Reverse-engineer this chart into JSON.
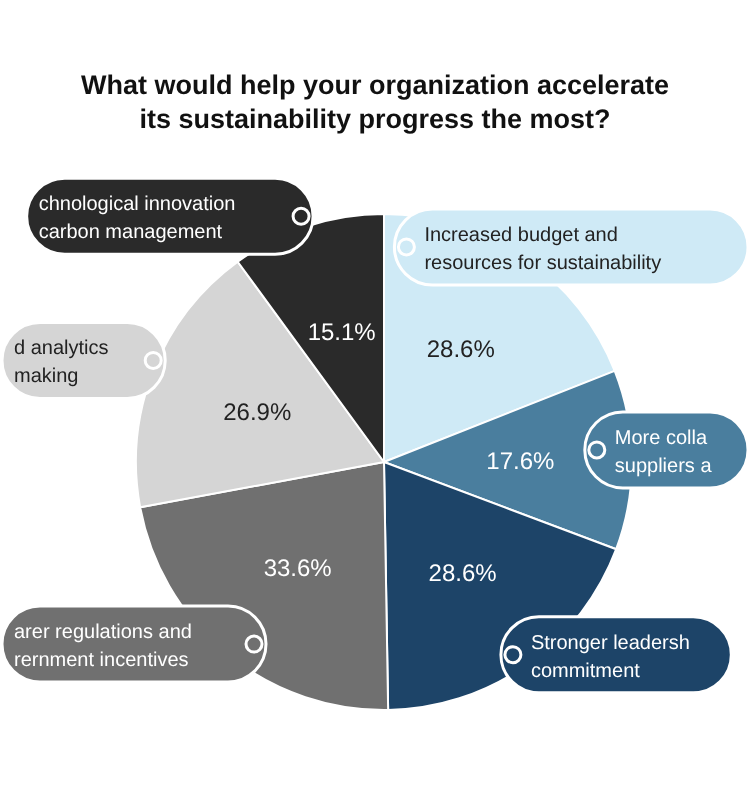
{
  "chart_data": {
    "type": "pie",
    "title": "What would help your organization accelerate its sustainability progress the most?",
    "categories": [
      "Increased budget and\nresources for sustainability",
      "More colla\nsuppliers a",
      "Stronger leadersh\ncommitment",
      "arer regulations and\nrernment incentives",
      "d analytics\nmaking",
      "chnological innovation\ncarbon management"
    ],
    "values": [
      28.6,
      17.6,
      28.6,
      33.6,
      26.9,
      15.1
    ],
    "value_labels": [
      "28.6%",
      "17.6%",
      "28.6%",
      "33.6%",
      "26.9%",
      "15.1%"
    ],
    "colors": [
      "#cfeaf6",
      "#4a7e9e",
      "#1d4468",
      "#707070",
      "#d5d5d5",
      "#2a2a2a"
    ],
    "legend": "right"
  }
}
